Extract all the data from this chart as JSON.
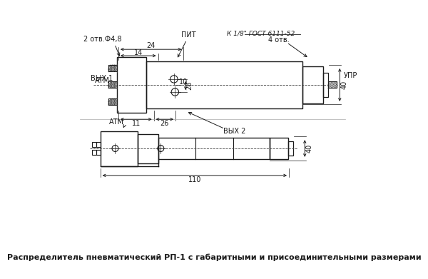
{
  "title": "Распределитель пневматический РП-1 с габаритными и присоединительными размерами",
  "background_color": "#ffffff",
  "line_color": "#1a1a1a",
  "font_size_label": 7.0,
  "font_size_title": 8.0
}
